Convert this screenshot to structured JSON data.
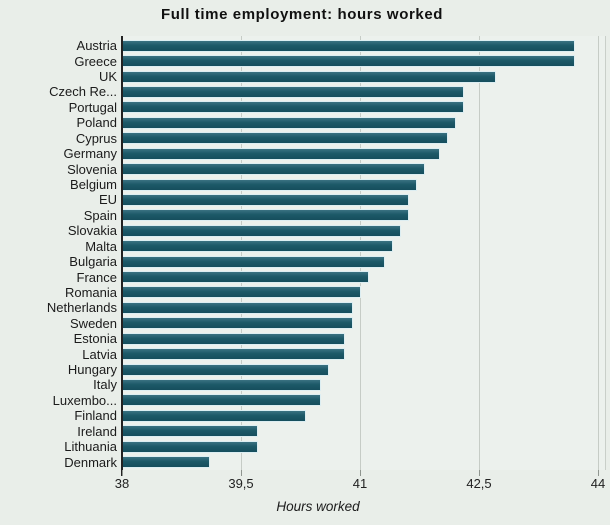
{
  "title": "Full time employment: hours worked",
  "x_axis": {
    "label": "Hours worked",
    "tick_labels": [
      "38",
      "39,5",
      "41",
      "42,5",
      "44"
    ],
    "tick_values": [
      38,
      39.5,
      41,
      42.5,
      44
    ]
  },
  "colors": {
    "background": "#e9eee9",
    "plot_background": "#ecf1ed",
    "bar": "#1c5968",
    "bar_highlight": "#3a7282",
    "bar_outline": "#dceef2",
    "gridline": "#c6ccc6",
    "axis": "#222222",
    "text": "#1b1b1b"
  },
  "chart_data": {
    "type": "bar",
    "orientation": "horizontal",
    "title": "Full time employment: hours worked",
    "xlabel": "Hours worked",
    "ylabel": "",
    "xlim": [
      38,
      44
    ],
    "x_ticks": [
      38,
      39.5,
      41,
      42.5,
      44
    ],
    "grid": true,
    "legend": false,
    "categories": [
      "Austria",
      "Greece",
      "UK",
      "Czech Re...",
      "Portugal",
      "Poland",
      "Cyprus",
      "Germany",
      "Slovenia",
      "Belgium",
      "EU",
      "Spain",
      "Slovakia",
      "Malta",
      "Bulgaria",
      "France",
      "Romania",
      "Netherlands",
      "Sweden",
      "Estonia",
      "Latvia",
      "Hungary",
      "Italy",
      "Luxembo...",
      "Finland",
      "Ireland",
      "Lithuania",
      "Denmark"
    ],
    "values": [
      43.7,
      43.7,
      42.7,
      42.3,
      42.3,
      42.2,
      42.1,
      42.0,
      41.8,
      41.7,
      41.6,
      41.6,
      41.5,
      41.4,
      41.3,
      41.1,
      41.0,
      40.9,
      40.9,
      40.8,
      40.8,
      40.6,
      40.5,
      40.5,
      40.3,
      39.7,
      39.7,
      39.1
    ]
  }
}
